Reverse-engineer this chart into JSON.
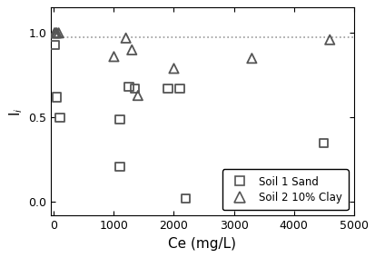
{
  "soil1_x": [
    10,
    50,
    100,
    1100,
    1250,
    1350,
    1900,
    2100,
    1100,
    2200,
    4500
  ],
  "soil1_y": [
    0.93,
    0.62,
    0.5,
    0.49,
    0.68,
    0.67,
    0.67,
    0.67,
    0.21,
    0.02,
    0.35
  ],
  "soil2_x": [
    10,
    30,
    50,
    80,
    1000,
    1200,
    1300,
    1400,
    2000,
    3300,
    4600
  ],
  "soil2_y": [
    1.0,
    1.0,
    1.0,
    1.0,
    0.86,
    0.97,
    0.9,
    0.63,
    0.79,
    0.85,
    0.96
  ],
  "hline_y": 0.975,
  "xlabel": "Ce (mg/L)",
  "ylabel": "I$_i$",
  "xlim": [
    -50,
    5000
  ],
  "ylim": [
    -0.08,
    1.15
  ],
  "yticks": [
    0.0,
    0.5,
    1.0
  ],
  "xticks": [
    0,
    1000,
    2000,
    3000,
    4000,
    5000
  ],
  "legend_label1": "Soil 1 Sand",
  "legend_label2": "Soil 2 10% Clay",
  "hline_color": "#999999",
  "marker_color": "#555555",
  "bg_color": "#ffffff"
}
